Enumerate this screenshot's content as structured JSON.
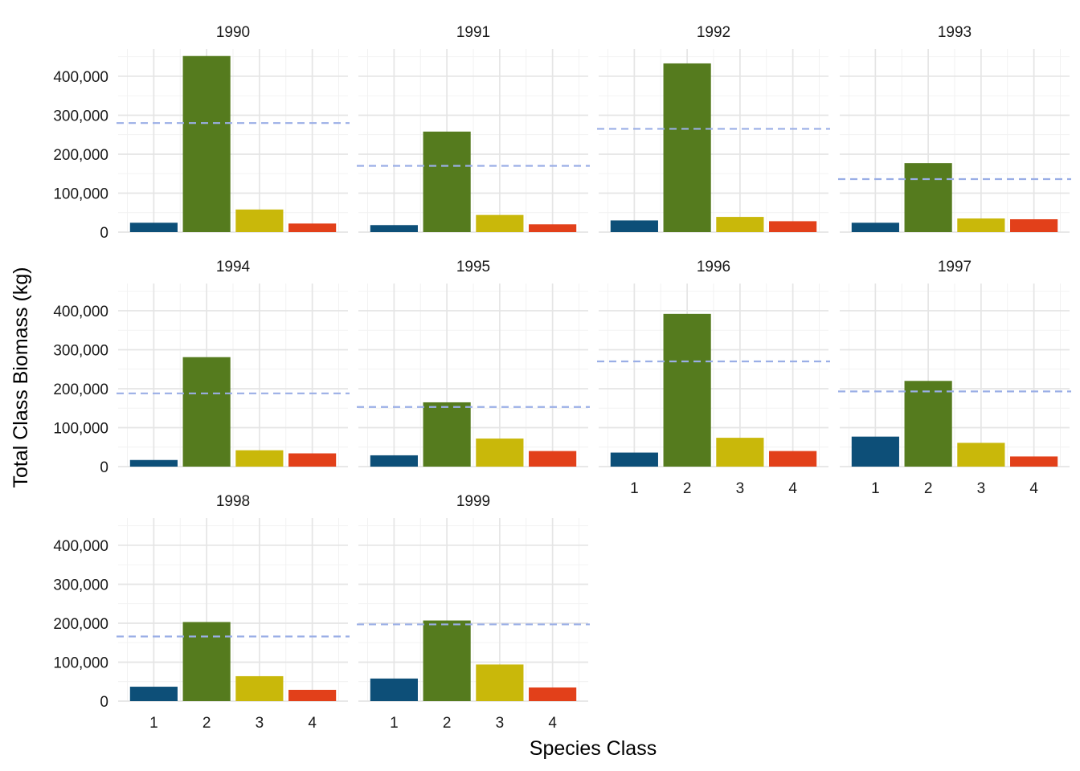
{
  "chart_data": {
    "type": "bar",
    "facet_by": "year",
    "xlabel": "Species Class",
    "ylabel": "Total Class Biomass (kg)",
    "categories": [
      "1",
      "2",
      "3",
      "4"
    ],
    "ylim": [
      0,
      470000
    ],
    "yticks": [
      0,
      100000,
      200000,
      300000,
      400000
    ],
    "ytick_labels": [
      "0",
      "100,000",
      "200,000",
      "300,000",
      "400,000"
    ],
    "grid": true,
    "legend": "none",
    "colors": [
      "#0d4f78",
      "#557b1e",
      "#c9b80a",
      "#e2401a"
    ],
    "reference_line": {
      "style": "dashed",
      "color": "#9aaee6",
      "meaning": "mean biomass across classes"
    },
    "facets": [
      {
        "year": "1990",
        "values": [
          24000,
          452000,
          58000,
          22000
        ],
        "reference": 280000
      },
      {
        "year": "1991",
        "values": [
          18000,
          258000,
          44000,
          20000
        ],
        "reference": 170000
      },
      {
        "year": "1992",
        "values": [
          30000,
          433000,
          39000,
          28000
        ],
        "reference": 265000
      },
      {
        "year": "1993",
        "values": [
          24000,
          177000,
          35000,
          33000
        ],
        "reference": 136000
      },
      {
        "year": "1994",
        "values": [
          17000,
          281000,
          42000,
          34000
        ],
        "reference": 188000
      },
      {
        "year": "1995",
        "values": [
          29000,
          165000,
          72000,
          40000
        ],
        "reference": 153000
      },
      {
        "year": "1996",
        "values": [
          36000,
          392000,
          74000,
          40000
        ],
        "reference": 270000
      },
      {
        "year": "1997",
        "values": [
          77000,
          220000,
          61000,
          26000
        ],
        "reference": 193000
      },
      {
        "year": "1998",
        "values": [
          37000,
          203000,
          64000,
          29000
        ],
        "reference": 166000
      },
      {
        "year": "1999",
        "values": [
          58000,
          207000,
          94000,
          35000
        ],
        "reference": 197000
      }
    ]
  }
}
